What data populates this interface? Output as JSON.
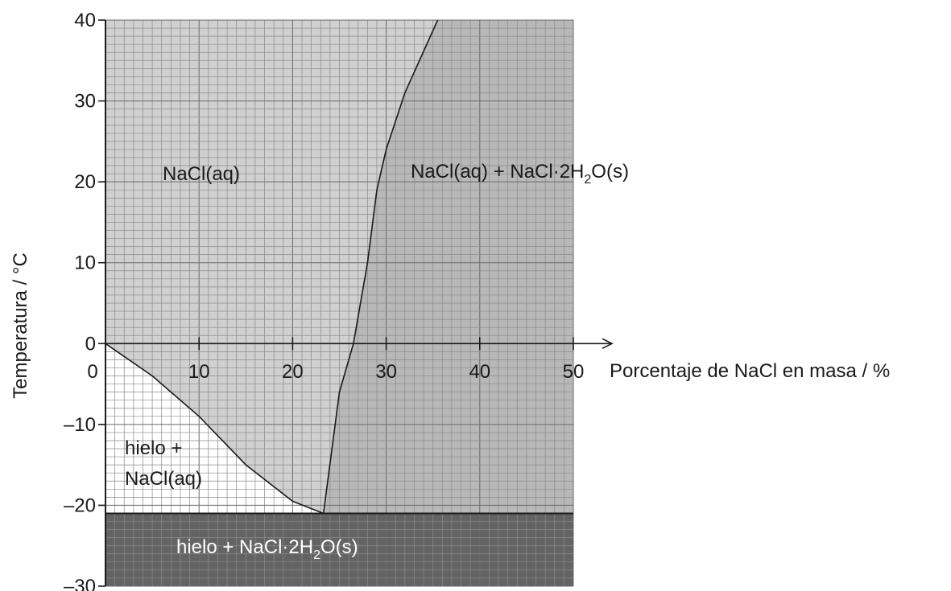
{
  "chart_data": {
    "type": "area",
    "title": "",
    "xlabel": "Porcentaje de NaCl en masa / %",
    "ylabel": "Temperatura / °C",
    "xlim": [
      0,
      50
    ],
    "ylim": [
      -30,
      40
    ],
    "x_ticks": [
      "0",
      "10",
      "20",
      "30",
      "40",
      "50"
    ],
    "y_ticks": [
      "40",
      "30",
      "20",
      "10",
      "0",
      "–10",
      "–20",
      "–30"
    ],
    "grid": true,
    "eutectic_temperature": -21,
    "eutectic_composition": 23.3,
    "curves": {
      "ice_liquidus": {
        "x": [
          0,
          5,
          10,
          15,
          20,
          23.3
        ],
        "y": [
          0,
          -4,
          -9,
          -15,
          -19.5,
          -21
        ]
      },
      "dihydrate_solubility": {
        "x": [
          23.3,
          25,
          26.5,
          28,
          29,
          30,
          32,
          35.5
        ],
        "y": [
          -21,
          -6,
          0,
          10,
          19,
          24,
          31,
          40
        ]
      }
    },
    "regions": [
      {
        "id": "liquid",
        "label": "NaCl(aq)",
        "color": "#d0d0d0"
      },
      {
        "id": "ice_liquid",
        "label_line1": "hielo +",
        "label_line2": "NaCl(aq)",
        "color": "#ffffff"
      },
      {
        "id": "liquid_dihydrate",
        "label_main": "NaCl(aq) + NaCl·2H",
        "label_sub": "2",
        "label_tail": "O(s)",
        "color": "#b8b8b8"
      },
      {
        "id": "ice_dihydrate",
        "label_main": "hielo + NaCl·2H",
        "label_sub": "2",
        "label_tail": "O(s)",
        "color": "#636363"
      }
    ]
  }
}
